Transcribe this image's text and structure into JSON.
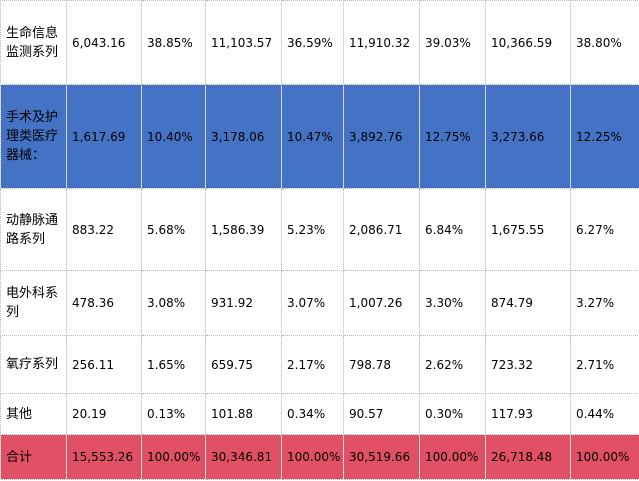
{
  "rows": [
    {
      "category": "生命信息监测系列",
      "values": [
        "6,043.16",
        "38.85%",
        "11,103.57",
        "36.59%",
        "11,910.32",
        "39.03%",
        "10,366.59",
        "38.80%"
      ]
    },
    {
      "category": "手术及护理类医疗器械：",
      "values": [
        "1,617.69",
        "10.40%",
        "3,178.06",
        "10.47%",
        "3,892.76",
        "12.75%",
        "3,273.66",
        "12.25%"
      ]
    },
    {
      "category": "动静脉通路系列",
      "values": [
        "883.22",
        "5.68%",
        "1,586.39",
        "5.23%",
        "2,086.71",
        "6.84%",
        "1,675.55",
        "6.27%"
      ]
    },
    {
      "category": "电外科系列",
      "values": [
        "478.36",
        "3.08%",
        "931.92",
        "3.07%",
        "1,007.26",
        "3.30%",
        "874.79",
        "3.27%"
      ]
    },
    {
      "category": "氧疗系列",
      "values": [
        "256.11",
        "1.65%",
        "659.75",
        "2.17%",
        "798.78",
        "2.62%",
        "723.32",
        "2.71%"
      ]
    },
    {
      "category": "其他",
      "values": [
        "20.19",
        "0.13%",
        "101.88",
        "0.34%",
        "90.57",
        "0.30%",
        "117.93",
        "0.44%"
      ]
    },
    {
      "category": "合计",
      "values": [
        "15,553.26",
        "100.00%",
        "30,346.81",
        "100.00%",
        "30,519.66",
        "100.00%",
        "26,718.48",
        "100.00%"
      ]
    }
  ],
  "colors": {
    "highlight_blue": "#4472c4",
    "highlight_red": "#e15065"
  }
}
